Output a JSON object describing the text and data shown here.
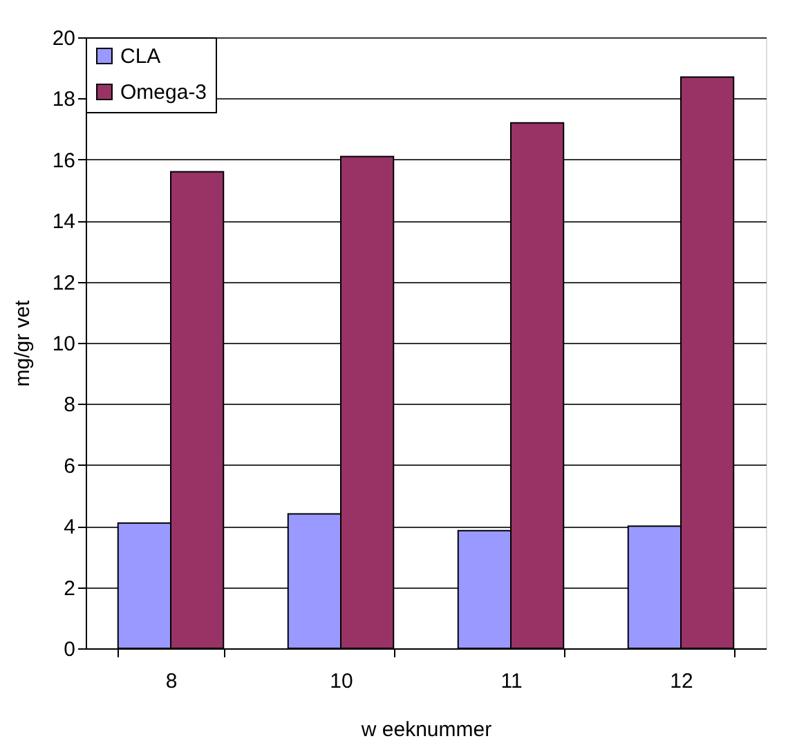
{
  "chart_data": {
    "type": "bar",
    "xlabel": "w eeknummer",
    "ylabel": "mg/gr vet",
    "categories": [
      "8",
      "10",
      "11",
      "12"
    ],
    "series": [
      {
        "name": "CLA",
        "color": "#9999ff",
        "values": [
          4.1,
          4.4,
          3.85,
          4.0
        ]
      },
      {
        "name": "Omega-3",
        "color": "#993366",
        "values": [
          15.6,
          16.1,
          17.2,
          18.7
        ]
      }
    ],
    "ylim": [
      0,
      20
    ],
    "yticks": [
      0,
      2,
      4,
      6,
      8,
      10,
      12,
      14,
      16,
      18,
      20
    ],
    "grid": "y",
    "legend": "top left"
  }
}
